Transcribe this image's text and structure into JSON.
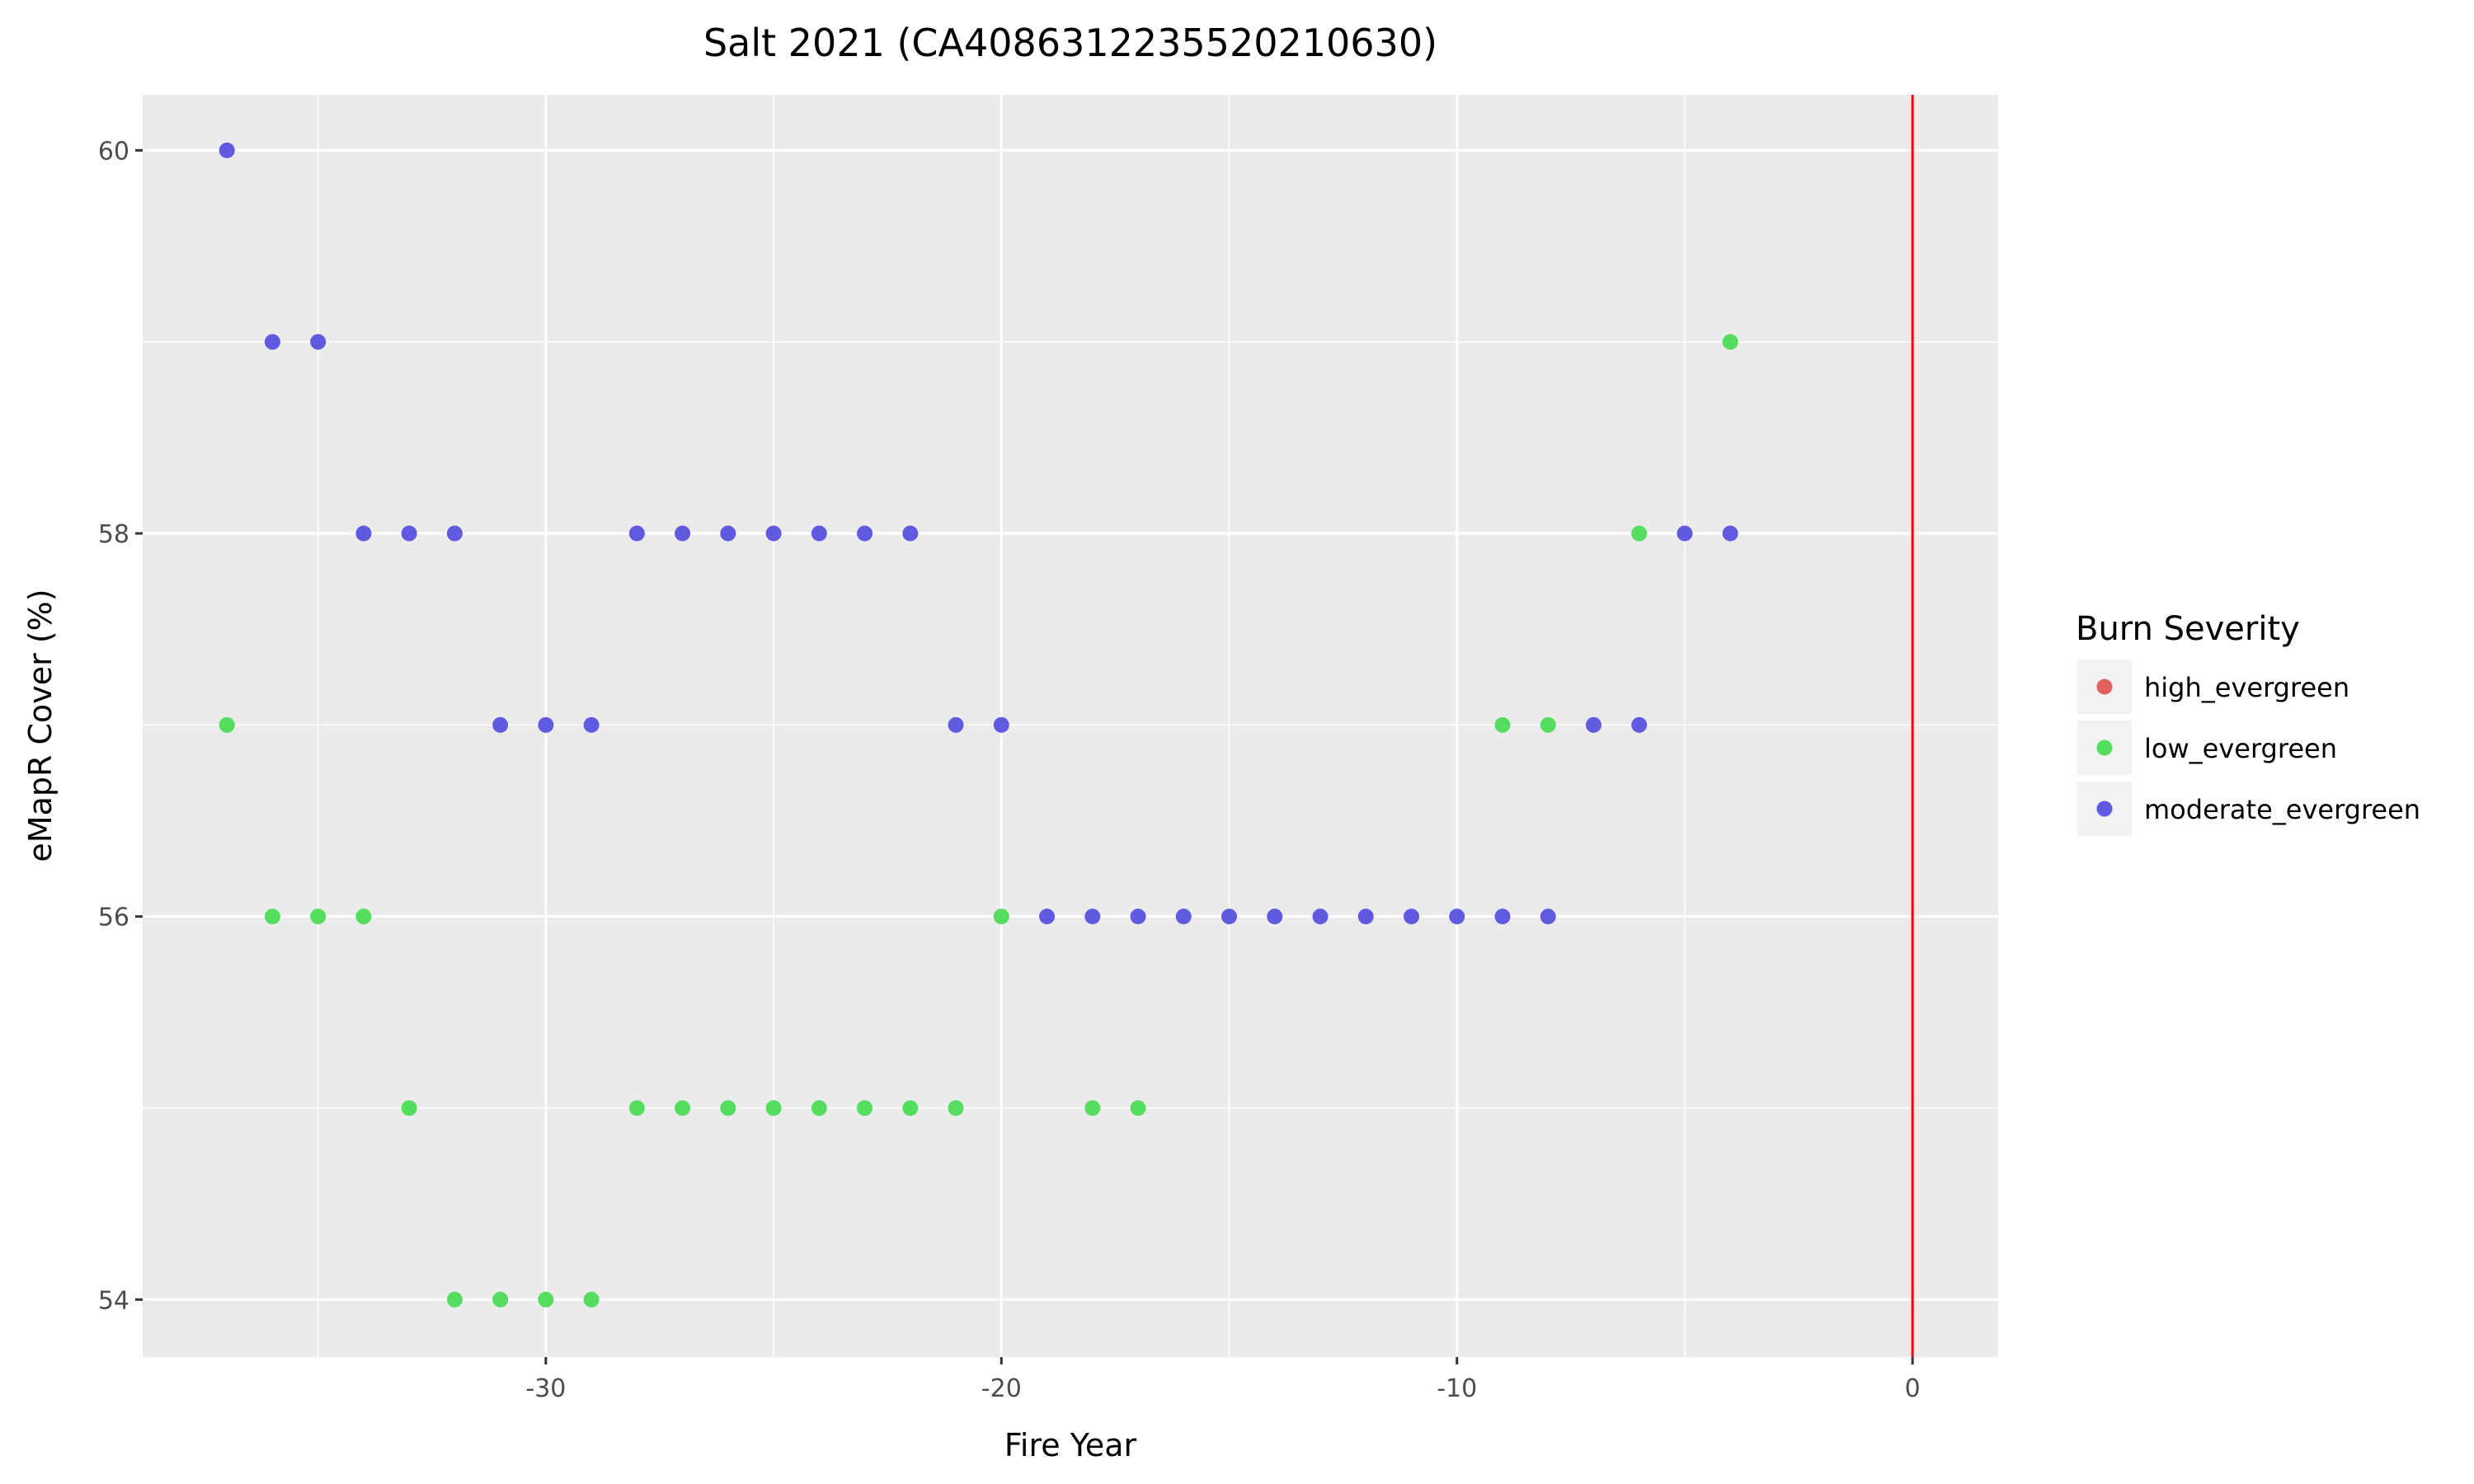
{
  "chart_data": {
    "type": "scatter",
    "title": "Salt 2021 (CA4086312235520210630)",
    "xlabel": "Fire Year",
    "ylabel": "eMapR Cover (%)",
    "xlim": [
      -38.85,
      1.88
    ],
    "ylim": [
      53.7,
      60.29
    ],
    "xticks": [
      -30,
      -20,
      -10,
      0
    ],
    "yticks": [
      54,
      56,
      58,
      60
    ],
    "grid": true,
    "vline": {
      "x": 0,
      "color": "#ff0000"
    },
    "legend": {
      "title": "Burn Severity",
      "placement": "right"
    },
    "series": [
      {
        "name": "high_evergreen",
        "color": "#e06060",
        "points": []
      },
      {
        "name": "low_evergreen",
        "color": "#55dd5f",
        "points": [
          [
            -37,
            57
          ],
          [
            -36,
            56
          ],
          [
            -35,
            56
          ],
          [
            -34,
            56
          ],
          [
            -33,
            55
          ],
          [
            -32,
            54
          ],
          [
            -31,
            54
          ],
          [
            -30,
            54
          ],
          [
            -29,
            54
          ],
          [
            -28,
            55
          ],
          [
            -27,
            55
          ],
          [
            -26,
            55
          ],
          [
            -25,
            55
          ],
          [
            -24,
            55
          ],
          [
            -23,
            55
          ],
          [
            -22,
            55
          ],
          [
            -21,
            55
          ],
          [
            -20,
            56
          ],
          [
            -18,
            55
          ],
          [
            -17,
            55
          ],
          [
            -9,
            57
          ],
          [
            -8,
            57
          ],
          [
            -6,
            58
          ],
          [
            -4,
            59
          ]
        ]
      },
      {
        "name": "moderate_evergreen",
        "color": "#5f5ae0",
        "points": [
          [
            -37,
            60
          ],
          [
            -36,
            59
          ],
          [
            -35,
            59
          ],
          [
            -34,
            58
          ],
          [
            -33,
            58
          ],
          [
            -32,
            58
          ],
          [
            -28,
            58
          ],
          [
            -27,
            58
          ],
          [
            -26,
            58
          ],
          [
            -25,
            58
          ],
          [
            -24,
            58
          ],
          [
            -23,
            58
          ],
          [
            -22,
            58
          ],
          [
            -31,
            57
          ],
          [
            -30,
            57
          ],
          [
            -29,
            57
          ],
          [
            -21,
            57
          ],
          [
            -20,
            57
          ],
          [
            -19,
            56
          ],
          [
            -18,
            56
          ],
          [
            -17,
            56
          ],
          [
            -16,
            56
          ],
          [
            -15,
            56
          ],
          [
            -14,
            56
          ],
          [
            -13,
            56
          ],
          [
            -12,
            56
          ],
          [
            -11,
            56
          ],
          [
            -10,
            56
          ],
          [
            -9,
            56
          ],
          [
            -8,
            56
          ],
          [
            -7,
            57
          ],
          [
            -6,
            57
          ],
          [
            -5,
            58
          ],
          [
            -4,
            58
          ]
        ]
      }
    ]
  }
}
